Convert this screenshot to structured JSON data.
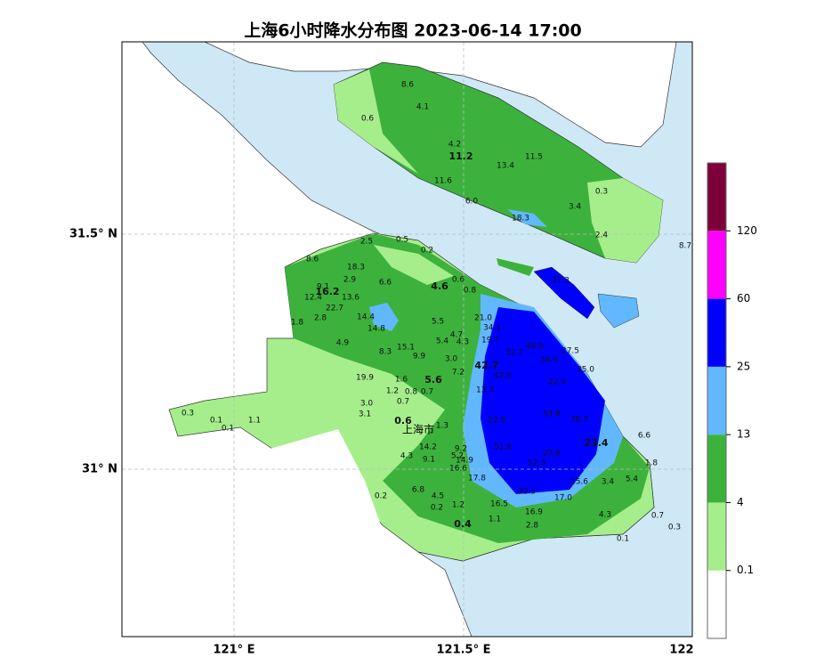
{
  "title": "上海6小时降水分布图 2023-06-14 17:00",
  "place": "上海市",
  "axes": {
    "lat": [
      "31.5° N",
      "31° N"
    ],
    "lon": [
      "121° E",
      "121.5° E",
      "122"
    ]
  },
  "colorbar": {
    "colors": [
      "#ffffff",
      "#a6ee8c",
      "#3cb23c",
      "#61b8ff",
      "#0000ff",
      "#ff00ff",
      "#7e0038"
    ],
    "ticks": [
      0.1,
      4,
      13,
      25,
      60,
      120
    ]
  },
  "stations": [
    "8.6",
    "4.1",
    "0.6",
    "4.2",
    "11.2",
    "11.5",
    "13.4",
    "11.6",
    "6.0",
    "0.3",
    "3.4",
    "18.3",
    "2.4",
    "8.7",
    "2.5",
    "0.5",
    "0.2",
    "8.6",
    "18.3",
    "2.9",
    "6.6",
    "9.1",
    "16.2",
    "13.6",
    "12.4",
    "22.7",
    "4.6",
    "0.6",
    "0.8",
    "37.3",
    "2.8",
    "14.4",
    "1.8",
    "21.0",
    "5.5",
    "14.8",
    "34.1",
    "4.7",
    "4.9",
    "5.4",
    "4.3",
    "19.7",
    "46.9",
    "32.7",
    "27.5",
    "15.1",
    "8.3",
    "9.9",
    "3.0",
    "36.0",
    "42.7",
    "35.0",
    "7.2",
    "47.0",
    "19.9",
    "1.6",
    "5.6",
    "22.0",
    "1.2",
    "0.8",
    "0.7",
    "13.3",
    "0.7",
    "3.0",
    "3.1",
    "53.8",
    "38.7",
    "0.3",
    "0.1",
    "1.1",
    "0.1",
    "0.6",
    "1.3",
    "22.9",
    "6.6",
    "23.4",
    "14.2",
    "9.2",
    "51.8",
    "23.6",
    "4.3",
    "9.1",
    "5.2",
    "14.9",
    "1.8",
    "16.6",
    "52.3",
    "17.8",
    "15.6",
    "3.4",
    "5.4",
    "6.8",
    "4.5",
    "0.2",
    "32.3",
    "17.0",
    "0.2",
    "1.2",
    "16.5",
    "4.3",
    "0.7",
    "16.9",
    "1.1",
    "0.4",
    "2.8",
    "0.3",
    "0.1"
  ]
}
